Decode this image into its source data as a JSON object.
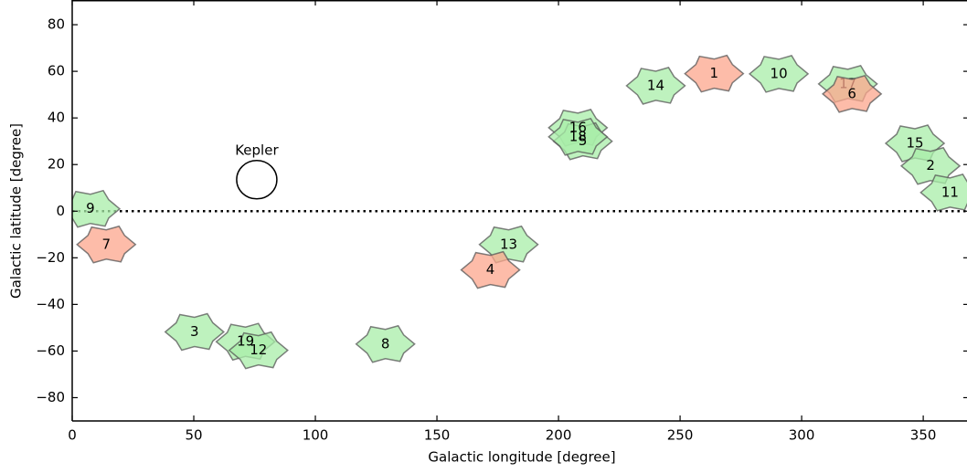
{
  "chart_data": {
    "type": "scatter",
    "xlabel": "Galactic longitude [degree]",
    "ylabel": "Galactic latitude [degree]",
    "xlim": [
      0,
      368
    ],
    "ylim": [
      -90,
      90.6
    ],
    "xticks": [
      0,
      50,
      100,
      150,
      200,
      250,
      300,
      350
    ],
    "yticks": [
      {
        "value": -80,
        "label": "−80"
      },
      {
        "value": -60,
        "label": "−60"
      },
      {
        "value": -40,
        "label": "−40"
      },
      {
        "value": -20,
        "label": "−20"
      },
      0,
      20,
      40,
      60,
      80
    ],
    "hline": 0,
    "series": [
      {
        "color": "#a8eea8",
        "x": [
          290.6,
          240,
          319,
          208,
          210,
          208,
          346.6,
          353,
          361,
          7.5,
          179.5,
          50.3,
          71.3,
          76.6,
          128.8
        ],
        "y": [
          58.9,
          53.8,
          54.6,
          35.8,
          30,
          31.9,
          29.1,
          19.4,
          8,
          1,
          -14.3,
          -51.8,
          -56,
          -59.7,
          -57
        ],
        "labels": [
          "10",
          "14",
          "17",
          "16",
          "5",
          "18",
          "15",
          "2",
          "11",
          "9",
          "13",
          "3",
          "19",
          "12",
          "8"
        ]
      },
      {
        "color": "#fca68c",
        "x": [
          264,
          320.7,
          172,
          14
        ],
        "y": [
          59,
          50.3,
          -25.2,
          -14.3
        ],
        "labels": [
          "1",
          "6",
          "4",
          "7"
        ]
      }
    ],
    "annotation": {
      "text": "Kepler",
      "x": 75.9,
      "y": 13.5
    }
  }
}
